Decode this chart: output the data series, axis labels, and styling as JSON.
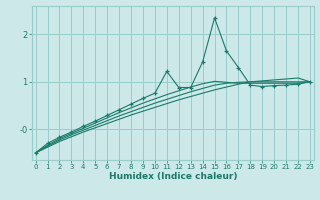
{
  "xlabel": "Humidex (Indice chaleur)",
  "bg_color": "#cce8e8",
  "grid_color": "#99cccc",
  "line_color": "#1a7a6a",
  "x_ticks": [
    0,
    1,
    2,
    3,
    4,
    5,
    6,
    7,
    8,
    9,
    10,
    11,
    12,
    13,
    14,
    15,
    16,
    17,
    18,
    19,
    20,
    21,
    22,
    23
  ],
  "y_ticks": [
    0,
    1,
    2
  ],
  "y_tick_labels": [
    "-0",
    "1",
    "2"
  ],
  "xlim": [
    -0.3,
    23.3
  ],
  "ylim": [
    -0.65,
    2.6
  ],
  "series": [
    {
      "x": [
        0,
        1,
        2,
        3,
        4,
        5,
        6,
        7,
        8,
        9,
        10,
        11,
        12,
        13,
        14,
        15,
        16,
        17,
        18,
        19,
        20,
        21,
        22,
        23
      ],
      "y": [
        -0.5,
        -0.38,
        -0.26,
        -0.16,
        -0.06,
        0.03,
        0.12,
        0.21,
        0.3,
        0.38,
        0.46,
        0.54,
        0.62,
        0.69,
        0.76,
        0.83,
        0.89,
        0.95,
        1.0,
        1.02,
        1.04,
        1.06,
        1.08,
        1.0
      ],
      "marker": false
    },
    {
      "x": [
        0,
        1,
        2,
        3,
        4,
        5,
        6,
        7,
        8,
        9,
        10,
        11,
        12,
        13,
        14,
        15,
        16,
        17,
        18,
        19,
        20,
        21,
        22,
        23
      ],
      "y": [
        -0.5,
        -0.36,
        -0.23,
        -0.12,
        -0.02,
        0.08,
        0.18,
        0.28,
        0.37,
        0.46,
        0.55,
        0.63,
        0.71,
        0.79,
        0.86,
        0.93,
        0.97,
        0.99,
        1.0,
        1.0,
        1.0,
        1.0,
        1.0,
        1.0
      ],
      "marker": false
    },
    {
      "x": [
        0,
        1,
        2,
        3,
        4,
        5,
        6,
        7,
        8,
        9,
        10,
        11,
        12,
        13,
        14,
        15,
        16,
        17,
        18,
        19,
        20,
        21,
        22,
        23
      ],
      "y": [
        -0.5,
        -0.34,
        -0.2,
        -0.09,
        0.02,
        0.13,
        0.24,
        0.35,
        0.45,
        0.55,
        0.64,
        0.73,
        0.81,
        0.89,
        0.96,
        1.01,
        0.99,
        0.97,
        0.97,
        0.97,
        0.97,
        0.97,
        0.97,
        1.0
      ],
      "marker": false
    },
    {
      "x": [
        0,
        1,
        2,
        3,
        4,
        5,
        6,
        7,
        8,
        9,
        10,
        11,
        12,
        13,
        14,
        15,
        16,
        17,
        18,
        19,
        20,
        21,
        22,
        23
      ],
      "y": [
        -0.5,
        -0.3,
        -0.17,
        -0.06,
        0.06,
        0.17,
        0.29,
        0.41,
        0.53,
        0.65,
        0.76,
        1.22,
        0.88,
        0.88,
        1.42,
        2.35,
        1.65,
        1.3,
        0.93,
        0.9,
        0.92,
        0.93,
        0.95,
        1.0
      ],
      "marker": true
    }
  ]
}
